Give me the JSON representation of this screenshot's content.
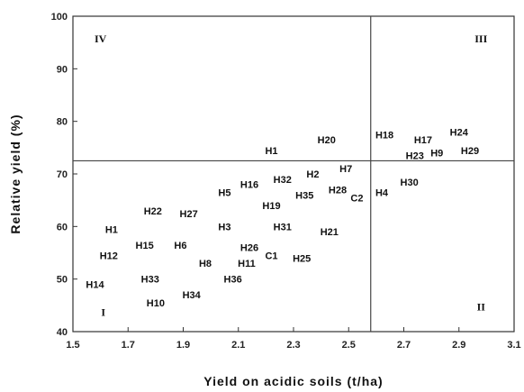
{
  "chart_data": {
    "type": "scatter",
    "xlabel": "Yield on acidic soils (t/ha)",
    "ylabel": "Relative yield (%)",
    "xlim": [
      1.5,
      3.1
    ],
    "ylim": [
      40,
      100
    ],
    "xticks": [
      "1.5",
      "1.7",
      "1.9",
      "2.1",
      "2.3",
      "2.5",
      "2.7",
      "2.9",
      "3.1"
    ],
    "yticks": [
      "40",
      "50",
      "60",
      "70",
      "80",
      "90",
      "100"
    ],
    "grid": false,
    "reference_lines": {
      "x": 2.58,
      "y": 72.5
    },
    "quadrants": [
      {
        "label": "IV",
        "x": 1.6,
        "y": 95
      },
      {
        "label": "III",
        "x": 2.98,
        "y": 95
      },
      {
        "label": "I",
        "x": 1.61,
        "y": 43
      },
      {
        "label": "II",
        "x": 2.98,
        "y": 44
      }
    ],
    "points": [
      {
        "label": "H1",
        "x": 2.22,
        "y": 74.5
      },
      {
        "label": "H20",
        "x": 2.42,
        "y": 76.5
      },
      {
        "label": "H18",
        "x": 2.63,
        "y": 77.5
      },
      {
        "label": "H17",
        "x": 2.77,
        "y": 76.5
      },
      {
        "label": "H24",
        "x": 2.9,
        "y": 78
      },
      {
        "label": "H23",
        "x": 2.74,
        "y": 73.5
      },
      {
        "label": "H9",
        "x": 2.82,
        "y": 74
      },
      {
        "label": "H29",
        "x": 2.94,
        "y": 74.5
      },
      {
        "label": "H7",
        "x": 2.49,
        "y": 71
      },
      {
        "label": "H2",
        "x": 2.37,
        "y": 70
      },
      {
        "label": "H32",
        "x": 2.26,
        "y": 69
      },
      {
        "label": "H16",
        "x": 2.14,
        "y": 68
      },
      {
        "label": "H5",
        "x": 2.05,
        "y": 66.5
      },
      {
        "label": "H35",
        "x": 2.34,
        "y": 66
      },
      {
        "label": "H28",
        "x": 2.46,
        "y": 67
      },
      {
        "label": "C2",
        "x": 2.53,
        "y": 65.5
      },
      {
        "label": "H4",
        "x": 2.62,
        "y": 66.5
      },
      {
        "label": "H30",
        "x": 2.72,
        "y": 68.5
      },
      {
        "label": "H19",
        "x": 2.22,
        "y": 64
      },
      {
        "label": "H22",
        "x": 1.79,
        "y": 63
      },
      {
        "label": "H27",
        "x": 1.92,
        "y": 62.5
      },
      {
        "label": "H3",
        "x": 2.05,
        "y": 60
      },
      {
        "label": "H31",
        "x": 2.26,
        "y": 60
      },
      {
        "label": "H21",
        "x": 2.43,
        "y": 59
      },
      {
        "label": "H1",
        "x": 1.64,
        "y": 59.5
      },
      {
        "label": "H15",
        "x": 1.76,
        "y": 56.5
      },
      {
        "label": "H6",
        "x": 1.89,
        "y": 56.5
      },
      {
        "label": "H26",
        "x": 2.14,
        "y": 56
      },
      {
        "label": "C1",
        "x": 2.22,
        "y": 54.5
      },
      {
        "label": "H12",
        "x": 1.63,
        "y": 54.5
      },
      {
        "label": "H8",
        "x": 1.98,
        "y": 53
      },
      {
        "label": "H11",
        "x": 2.13,
        "y": 53
      },
      {
        "label": "H25",
        "x": 2.33,
        "y": 54
      },
      {
        "label": "H33",
        "x": 1.78,
        "y": 50
      },
      {
        "label": "H36",
        "x": 2.08,
        "y": 50
      },
      {
        "label": "H14",
        "x": 1.58,
        "y": 49
      },
      {
        "label": "H10",
        "x": 1.8,
        "y": 45.5
      },
      {
        "label": "H34",
        "x": 1.93,
        "y": 47
      }
    ]
  }
}
